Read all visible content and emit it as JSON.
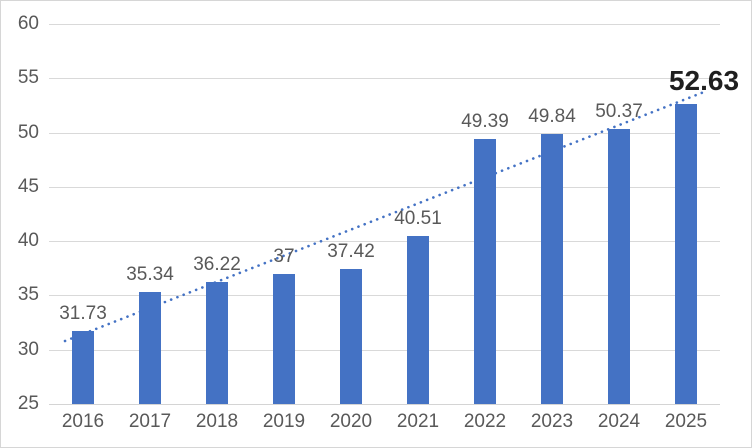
{
  "chart_data": {
    "type": "bar",
    "title": "",
    "xlabel": "",
    "ylabel": "",
    "categories": [
      "2016",
      "2017",
      "2018",
      "2019",
      "2020",
      "2021",
      "2022",
      "2023",
      "2024",
      "2025"
    ],
    "values": [
      31.73,
      35.34,
      36.22,
      37,
      37.42,
      40.51,
      49.39,
      49.84,
      50.37,
      52.63
    ],
    "data_labels": [
      "31.73",
      "35.34",
      "36.22",
      "37",
      "37.42",
      "40.51",
      "49.39",
      "49.84",
      "50.37",
      "52.63"
    ],
    "highlighted_label_index": 9,
    "ylim": [
      25,
      60
    ],
    "yticks": [
      25,
      30,
      35,
      40,
      45,
      50,
      55,
      60
    ],
    "grid": "horizontal",
    "legend": "none",
    "trendline": {
      "type": "linear",
      "style": "dotted",
      "start_value": 30.8,
      "end_value": 53.7
    },
    "colors": {
      "bar": "#4472c4",
      "trendline": "#4472c4",
      "gridline": "#d9d9d9",
      "axis_text": "#595959",
      "data_label": "#595959",
      "highlight_label": "#1f1f1f",
      "chart_border": "#d6d6d6",
      "background": "#ffffff"
    }
  }
}
